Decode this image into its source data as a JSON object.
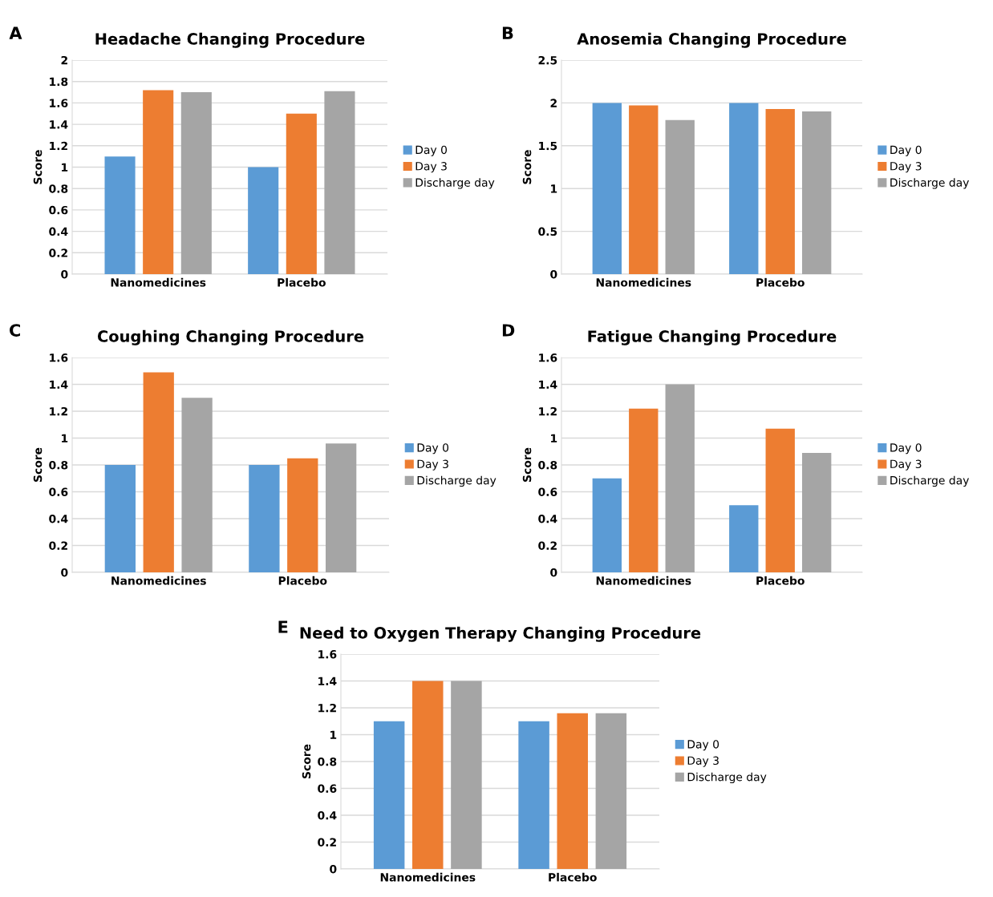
{
  "chart_data": [
    {
      "type": "bar",
      "title": "Headache Changing Procedure",
      "ylabel": "Score",
      "annotations": [
        "A"
      ],
      "categories": [
        "Nanomedicines",
        "Placebo"
      ],
      "ylim": [
        0,
        2
      ],
      "yticks": [
        0,
        0.2,
        0.4,
        0.6,
        0.8,
        1,
        1.2,
        1.4,
        1.6,
        1.8,
        2
      ],
      "grid": "y",
      "legend": "right",
      "series": [
        {
          "name": "Day 0",
          "color": "#5b9bd5",
          "values": [
            1.1,
            1.0
          ]
        },
        {
          "name": "Day 3",
          "color": "#ed7d31",
          "values": [
            1.72,
            1.5
          ]
        },
        {
          "name": "Discharge day",
          "color": "#a5a5a5",
          "values": [
            1.7,
            1.71
          ]
        }
      ]
    },
    {
      "type": "bar",
      "title": "Anosemia Changing Procedure",
      "ylabel": "Score",
      "annotations": [
        "B"
      ],
      "categories": [
        "Nanomedicines",
        "Placebo"
      ],
      "ylim": [
        0,
        2.5
      ],
      "yticks": [
        0,
        0.5,
        1,
        1.5,
        2,
        2.5
      ],
      "grid": "y",
      "legend": "right",
      "series": [
        {
          "name": "Day 0",
          "color": "#5b9bd5",
          "values": [
            2.0,
            2.0
          ]
        },
        {
          "name": "Day 3",
          "color": "#ed7d31",
          "values": [
            1.97,
            1.93
          ]
        },
        {
          "name": "Discharge day",
          "color": "#a5a5a5",
          "values": [
            1.8,
            1.9
          ]
        }
      ]
    },
    {
      "type": "bar",
      "title": "Coughing Changing Procedure",
      "ylabel": "Score",
      "annotations": [
        "C"
      ],
      "categories": [
        "Nanomedicines",
        "Placebo"
      ],
      "ylim": [
        0,
        1.6
      ],
      "yticks": [
        0,
        0.2,
        0.4,
        0.6,
        0.8,
        1,
        1.2,
        1.4,
        1.6
      ],
      "grid": "y",
      "legend": "right",
      "series": [
        {
          "name": "Day 0",
          "color": "#5b9bd5",
          "values": [
            0.8,
            0.8
          ]
        },
        {
          "name": "Day 3",
          "color": "#ed7d31",
          "values": [
            1.49,
            0.85
          ]
        },
        {
          "name": "Discharge day",
          "color": "#a5a5a5",
          "values": [
            1.3,
            0.96
          ]
        }
      ]
    },
    {
      "type": "bar",
      "title": "Fatigue Changing Procedure",
      "ylabel": "Score",
      "annotations": [
        "D"
      ],
      "categories": [
        "Nanomedicines",
        "Placebo"
      ],
      "ylim": [
        0,
        1.6
      ],
      "yticks": [
        0,
        0.2,
        0.4,
        0.6,
        0.8,
        1,
        1.2,
        1.4,
        1.6
      ],
      "grid": "y",
      "legend": "right",
      "series": [
        {
          "name": "Day 0",
          "color": "#5b9bd5",
          "values": [
            0.7,
            0.5
          ]
        },
        {
          "name": "Day 3",
          "color": "#ed7d31",
          "values": [
            1.22,
            1.07
          ]
        },
        {
          "name": "Discharge day",
          "color": "#a5a5a5",
          "values": [
            1.4,
            0.89
          ]
        }
      ]
    },
    {
      "type": "bar",
      "title": "Need to Oxygen Therapy Changing Procedure",
      "ylabel": "Score",
      "annotations": [
        "E"
      ],
      "categories": [
        "Nanomedicines",
        "Placebo"
      ],
      "ylim": [
        0,
        1.6
      ],
      "yticks": [
        0,
        0.2,
        0.4,
        0.6,
        0.8,
        1,
        1.2,
        1.4,
        1.6
      ],
      "grid": "y",
      "legend": "right",
      "series": [
        {
          "name": "Day 0",
          "color": "#5b9bd5",
          "values": [
            1.1,
            1.1
          ]
        },
        {
          "name": "Day 3",
          "color": "#ed7d31",
          "values": [
            1.4,
            1.16
          ]
        },
        {
          "name": "Discharge day",
          "color": "#a5a5a5",
          "values": [
            1.4,
            1.16
          ]
        }
      ]
    }
  ]
}
